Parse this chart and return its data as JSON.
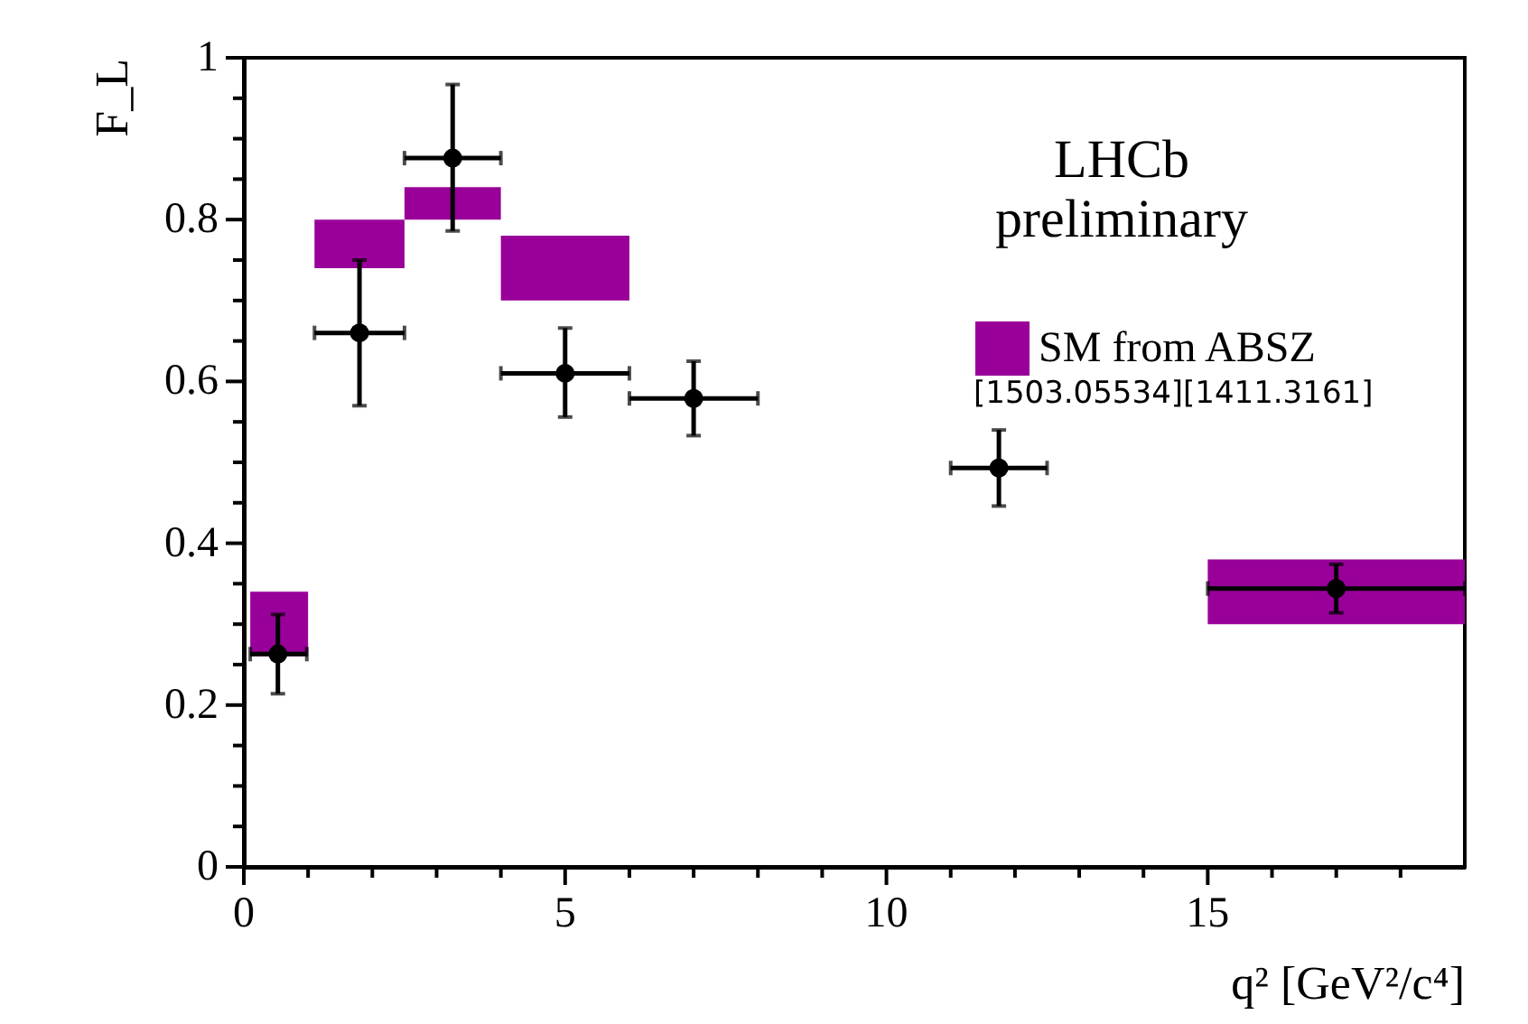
{
  "chart_data": {
    "type": "scatter",
    "xlabel": "q² [GeV²/c⁴]",
    "ylabel": "F_L",
    "xlim": [
      0,
      19
    ],
    "ylim": [
      0,
      1
    ],
    "xticks": [
      0,
      {
        "value": 1,
        "label": null
      },
      {
        "value": 2,
        "label": null
      },
      {
        "value": 3,
        "label": null
      },
      {
        "value": 4,
        "label": null
      },
      5,
      {
        "value": 6,
        "label": null
      },
      {
        "value": 7,
        "label": null
      },
      {
        "value": 8,
        "label": null
      },
      {
        "value": 9,
        "label": null
      },
      10,
      {
        "value": 11,
        "label": null
      },
      {
        "value": 12,
        "label": null
      },
      {
        "value": 13,
        "label": null
      },
      {
        "value": 14,
        "label": null
      },
      15,
      {
        "value": 16,
        "label": null
      },
      {
        "value": 17,
        "label": null
      },
      {
        "value": 18,
        "label": null
      }
    ],
    "yticks": [
      0,
      {
        "value": 0.05,
        "label": null
      },
      {
        "value": 0.1,
        "label": null
      },
      {
        "value": 0.15,
        "label": null
      },
      0.2,
      {
        "value": 0.25,
        "label": null
      },
      {
        "value": 0.3,
        "label": null
      },
      {
        "value": 0.35,
        "label": null
      },
      0.4,
      {
        "value": 0.45,
        "label": null
      },
      {
        "value": 0.5,
        "label": null
      },
      {
        "value": 0.55,
        "label": null
      },
      0.6,
      {
        "value": 0.65,
        "label": null
      },
      {
        "value": 0.7,
        "label": null
      },
      {
        "value": 0.75,
        "label": null
      },
      0.8,
      {
        "value": 0.85,
        "label": null
      },
      {
        "value": 0.9,
        "label": null
      },
      {
        "value": 0.95,
        "label": null
      },
      1
    ],
    "grid": false,
    "legend": "top right",
    "marker": "circle",
    "annotations": [
      "LHCb\npreliminary",
      "[1503.05534][1411.3161]"
    ],
    "series": [
      {
        "type": "histogram",
        "name": "SM from ABSZ",
        "color": "#990099",
        "bins": [
          0.1,
          1.0,
          1.1,
          2.5,
          4.0,
          6.0,
          15,
          19
        ],
        "base": [
          0.26,
          null,
          0.74,
          0.8,
          0.7,
          null,
          0.3
        ],
        "values": [
          0.08,
          null,
          0.06,
          0.04,
          0.08,
          null,
          0.08
        ]
      },
      {
        "color": "#000000",
        "x": [
          0.53,
          1.8,
          3.25,
          5,
          7,
          11.75,
          17
        ],
        "values": [
          0.263,
          0.66,
          0.876,
          0.61,
          0.579,
          0.493,
          0.344
        ],
        "errors": [
          [
            0.214,
            0.312
          ],
          [
            0.57,
            0.75
          ],
          [
            0.786,
            0.967
          ],
          [
            0.556,
            0.666
          ],
          [
            0.533,
            0.625
          ],
          [
            0.446,
            0.54
          ],
          [
            0.314,
            0.374
          ]
        ],
        "xerrors": [
          [
            0.1,
            0.98
          ],
          [
            1.1,
            2.5
          ],
          [
            2.5,
            4.0
          ],
          [
            4.0,
            6.0
          ],
          [
            6.0,
            8.0
          ],
          [
            11.0,
            12.5
          ],
          [
            15,
            19
          ]
        ]
      }
    ]
  }
}
